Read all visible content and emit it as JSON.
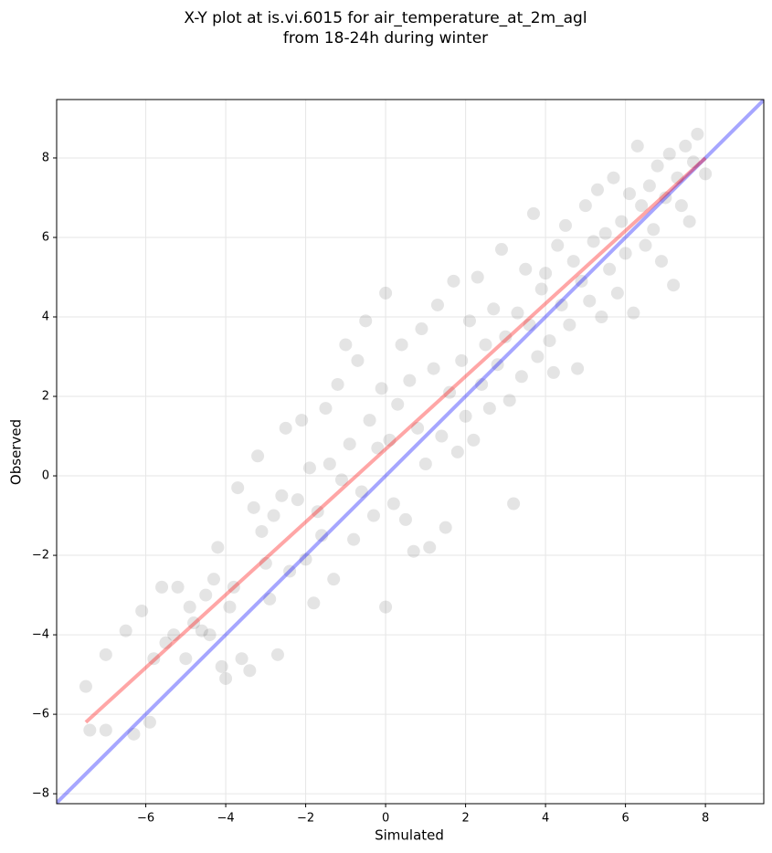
{
  "chart_data": {
    "type": "scatter",
    "title": [
      "X-Y plot at is.vi.6015 for air_temperature_at_2m_agl",
      "from 18-24h during winter"
    ],
    "xlabel": "Simulated",
    "ylabel": "Observed",
    "xlim": [
      -8.23,
      9.46
    ],
    "ylim": [
      -8.25,
      9.47
    ],
    "xticks": [
      {
        "value": -6,
        "label": "−6"
      },
      {
        "value": -4,
        "label": "−4"
      },
      {
        "value": -2,
        "label": "−2"
      },
      0,
      2,
      4,
      6,
      8
    ],
    "yticks": [
      {
        "value": -8,
        "label": "−8"
      },
      {
        "value": -6,
        "label": "−6"
      },
      {
        "value": -4,
        "label": "−4"
      },
      {
        "value": -2,
        "label": "−2"
      },
      0,
      2,
      4,
      6,
      8
    ],
    "grid": true,
    "series": [
      {
        "color": "#222222",
        "x": [
          -7.5,
          -7.4,
          -7.0,
          -7.0,
          -6.5,
          -6.3,
          -6.1,
          -5.9,
          -5.8,
          -5.6,
          -5.5,
          -5.3,
          -5.2,
          -5.0,
          -4.9,
          -4.8,
          -4.6,
          -4.5,
          -4.4,
          -4.3,
          -4.2,
          -4.1,
          -4.0,
          -3.9,
          -3.8,
          -3.7,
          -3.6,
          -3.4,
          -3.3,
          -3.2,
          -3.1,
          -3.0,
          -2.9,
          -2.8,
          -2.7,
          -2.6,
          -2.5,
          -2.4,
          -2.2,
          -2.1,
          -2.0,
          -1.9,
          -1.8,
          -1.7,
          -1.6,
          -1.5,
          -1.4,
          -1.3,
          -1.2,
          -1.1,
          -1.0,
          -0.9,
          -0.8,
          -0.7,
          -0.6,
          -0.5,
          -0.4,
          -0.3,
          -0.2,
          -0.1,
          0.0,
          0.0,
          0.1,
          0.2,
          0.3,
          0.4,
          0.5,
          0.6,
          0.7,
          0.8,
          0.9,
          1.0,
          1.1,
          1.2,
          1.3,
          1.4,
          1.5,
          1.6,
          1.7,
          1.8,
          1.9,
          2.0,
          2.1,
          2.2,
          2.3,
          2.4,
          2.5,
          2.6,
          2.7,
          2.8,
          2.9,
          3.0,
          3.1,
          3.2,
          3.3,
          3.4,
          3.5,
          3.6,
          3.7,
          3.8,
          3.9,
          4.0,
          4.1,
          4.2,
          4.3,
          4.4,
          4.5,
          4.6,
          4.7,
          4.8,
          4.9,
          5.0,
          5.1,
          5.2,
          5.3,
          5.4,
          5.5,
          5.6,
          5.7,
          5.8,
          5.9,
          6.0,
          6.1,
          6.2,
          6.3,
          6.4,
          6.5,
          6.6,
          6.7,
          6.8,
          6.9,
          7.0,
          7.1,
          7.2,
          7.3,
          7.4,
          7.5,
          7.6,
          7.7,
          7.8,
          8.0
        ],
        "y": [
          -5.3,
          -6.4,
          -6.4,
          -4.5,
          -3.9,
          -6.5,
          -3.4,
          -6.2,
          -4.6,
          -2.8,
          -4.2,
          -4.0,
          -2.8,
          -4.6,
          -3.3,
          -3.7,
          -3.9,
          -3.0,
          -4.0,
          -2.6,
          -1.8,
          -4.8,
          -5.1,
          -3.3,
          -2.8,
          -0.3,
          -4.6,
          -4.9,
          -0.8,
          0.5,
          -1.4,
          -2.2,
          -3.1,
          -1.0,
          -4.5,
          -0.5,
          1.2,
          -2.4,
          -0.6,
          1.4,
          -2.1,
          0.2,
          -3.2,
          -0.9,
          -1.5,
          1.7,
          0.3,
          -2.6,
          2.3,
          -0.1,
          3.3,
          0.8,
          -1.6,
          2.9,
          -0.4,
          3.9,
          1.4,
          -1.0,
          0.7,
          2.2,
          -3.3,
          4.6,
          0.9,
          -0.7,
          1.8,
          3.3,
          -1.1,
          2.4,
          -1.9,
          1.2,
          3.7,
          0.3,
          -1.8,
          2.7,
          4.3,
          1.0,
          -1.3,
          2.1,
          4.9,
          0.6,
          2.9,
          1.5,
          3.9,
          0.9,
          5.0,
          2.3,
          3.3,
          1.7,
          4.2,
          2.8,
          5.7,
          3.5,
          1.9,
          -0.7,
          4.1,
          2.5,
          5.2,
          3.8,
          6.6,
          3.0,
          4.7,
          5.1,
          3.4,
          2.6,
          5.8,
          4.3,
          6.3,
          3.8,
          5.4,
          2.7,
          4.9,
          6.8,
          4.4,
          5.9,
          7.2,
          4.0,
          6.1,
          5.2,
          7.5,
          4.6,
          6.4,
          5.6,
          7.1,
          4.1,
          8.3,
          6.8,
          5.8,
          7.3,
          6.2,
          7.8,
          5.4,
          7.0,
          8.1,
          4.8,
          7.5,
          6.8,
          8.3,
          6.4,
          7.9,
          8.6,
          7.6
        ]
      }
    ],
    "lines": [
      {
        "color": "#0000ff",
        "x": [
          -8.23,
          9.46
        ],
        "y": [
          -8.23,
          9.46
        ]
      },
      {
        "color": "#ff0000",
        "x": [
          -7.5,
          8.0
        ],
        "y": [
          -6.2,
          8.0
        ]
      }
    ]
  }
}
